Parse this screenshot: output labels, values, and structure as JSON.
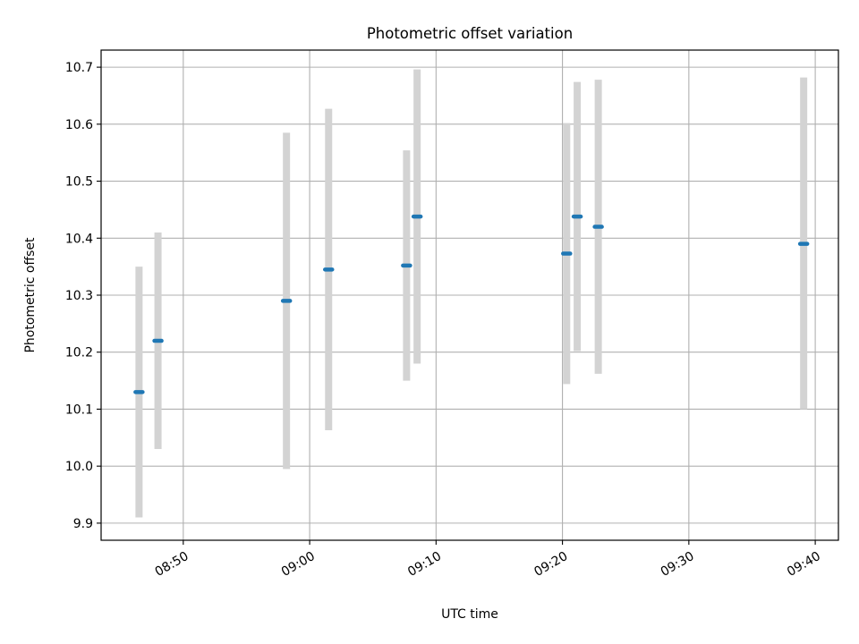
{
  "chart_data": {
    "type": "scatter",
    "title": "Photometric offset variation",
    "xlabel": "UTC time",
    "ylabel": "Photometric offset",
    "x_range": [
      "08:43:30",
      "09:41:50"
    ],
    "ylim": [
      9.87,
      10.73
    ],
    "x_ticks": [
      "08:50",
      "09:00",
      "09:10",
      "09:20",
      "09:30",
      "09:40"
    ],
    "y_ticks": [
      9.9,
      10.0,
      10.1,
      10.2,
      10.3,
      10.4,
      10.5,
      10.6,
      10.7
    ],
    "y_tick_labels": [
      "9.9",
      "10.0",
      "10.1",
      "10.2",
      "10.3",
      "10.4",
      "10.5",
      "10.6",
      "10.7"
    ],
    "grid": true,
    "series": [
      {
        "points": [
          {
            "time": "08:46:30",
            "value": 10.13,
            "err_low": 9.91,
            "err_high": 10.35
          },
          {
            "time": "08:48:00",
            "value": 10.22,
            "err_low": 10.03,
            "err_high": 10.41
          },
          {
            "time": "08:58:10",
            "value": 10.29,
            "err_low": 9.995,
            "err_high": 10.585
          },
          {
            "time": "09:01:30",
            "value": 10.345,
            "err_low": 10.063,
            "err_high": 10.627
          },
          {
            "time": "09:07:40",
            "value": 10.352,
            "err_low": 10.15,
            "err_high": 10.554
          },
          {
            "time": "09:08:30",
            "value": 10.438,
            "err_low": 10.18,
            "err_high": 10.696
          },
          {
            "time": "09:20:20",
            "value": 10.373,
            "err_low": 10.144,
            "err_high": 10.602
          },
          {
            "time": "09:21:10",
            "value": 10.438,
            "err_low": 10.202,
            "err_high": 10.674
          },
          {
            "time": "09:22:50",
            "value": 10.42,
            "err_low": 10.162,
            "err_high": 10.678
          },
          {
            "time": "09:39:05",
            "value": 10.39,
            "err_low": 10.1,
            "err_high": 10.682
          }
        ]
      }
    ],
    "colors": {
      "marker": "#1f77b4",
      "errorbar": "#d3d3d3",
      "grid": "#b0b0b0",
      "axes": "#000000"
    }
  }
}
